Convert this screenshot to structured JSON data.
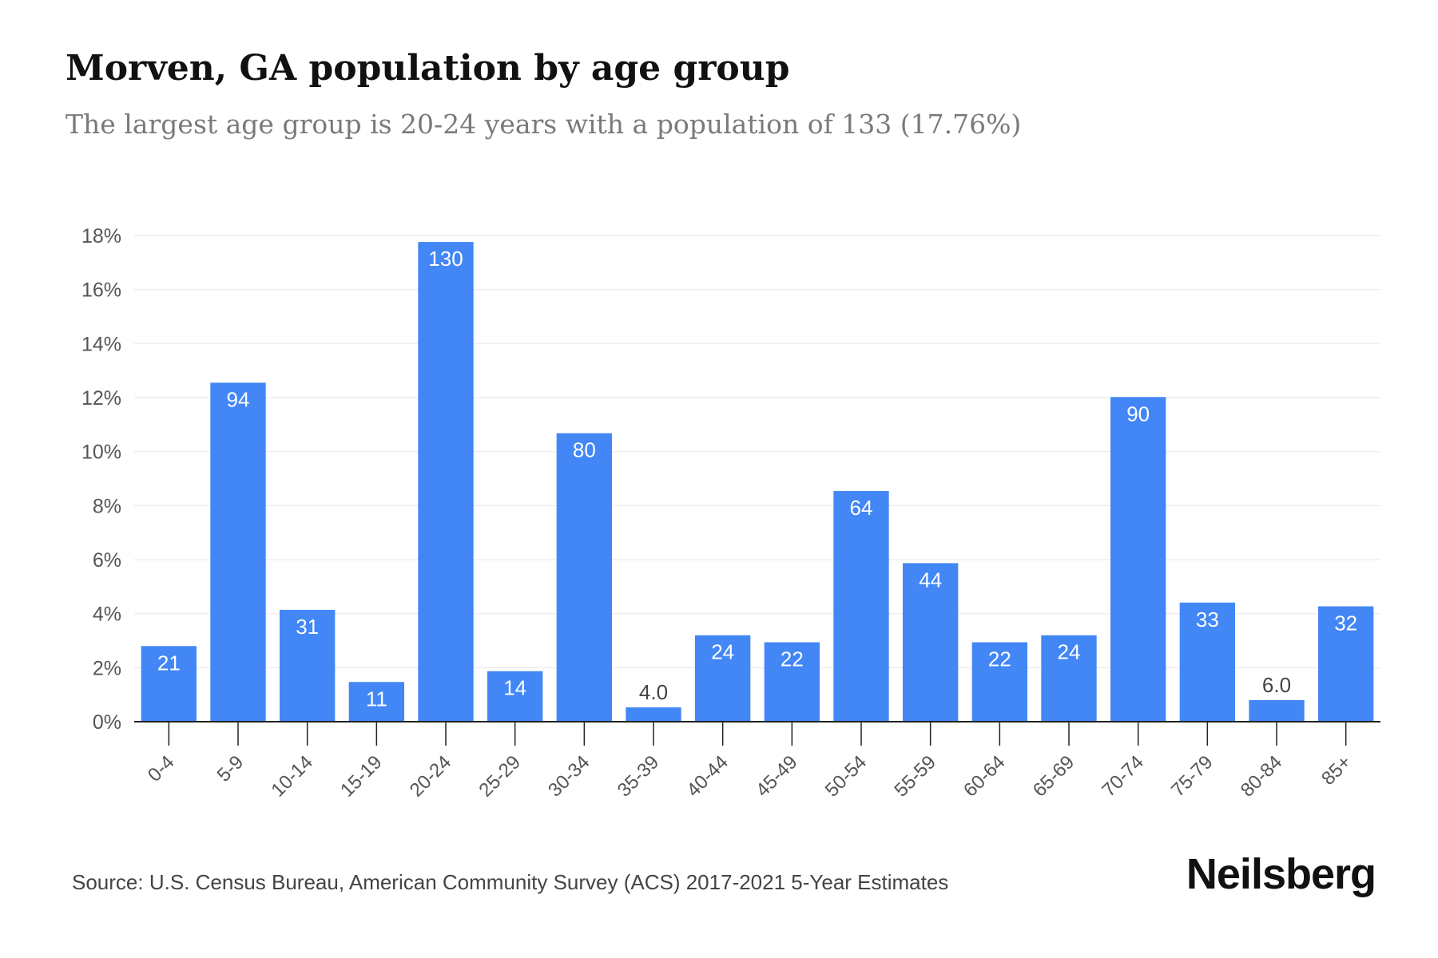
{
  "header": {
    "title": "Morven, GA population by age group",
    "subtitle": "The largest age group is 20-24 years with a population of 133 (17.76%)"
  },
  "footer": {
    "source": "Source: U.S. Census Bureau, American Community Survey (ACS) 2017-2021 5-Year Estimates",
    "brand": "Neilsberg"
  },
  "colors": {
    "bar": "#4287f5",
    "grid": "#eeeeee",
    "axis": "#222222",
    "tick_label": "#555555",
    "bar_label": "#ffffff",
    "outside_label": "#444444"
  },
  "chart_data": {
    "type": "bar",
    "categories": [
      "0-4",
      "5-9",
      "10-14",
      "15-19",
      "20-24",
      "25-29",
      "30-34",
      "35-39",
      "40-44",
      "45-49",
      "50-54",
      "55-59",
      "60-64",
      "65-69",
      "70-74",
      "75-79",
      "80-84",
      "85+"
    ],
    "values": [
      2.8,
      12.55,
      4.14,
      1.47,
      17.76,
      1.87,
      10.68,
      0.53,
      3.2,
      2.94,
      8.54,
      5.87,
      2.94,
      3.2,
      12.02,
      4.41,
      0.8,
      4.27
    ],
    "data_labels": [
      "21",
      "94",
      "31",
      "11",
      "130",
      "14",
      "80",
      "4.0",
      "24",
      "22",
      "64",
      "44",
      "22",
      "24",
      "90",
      "33",
      "6.0",
      "32"
    ],
    "y_ticks": [
      "0%",
      "2%",
      "4%",
      "6%",
      "8%",
      "10%",
      "12%",
      "14%",
      "16%",
      "18%"
    ],
    "ylim": [
      0,
      18
    ],
    "grid": true,
    "legend": "none"
  }
}
